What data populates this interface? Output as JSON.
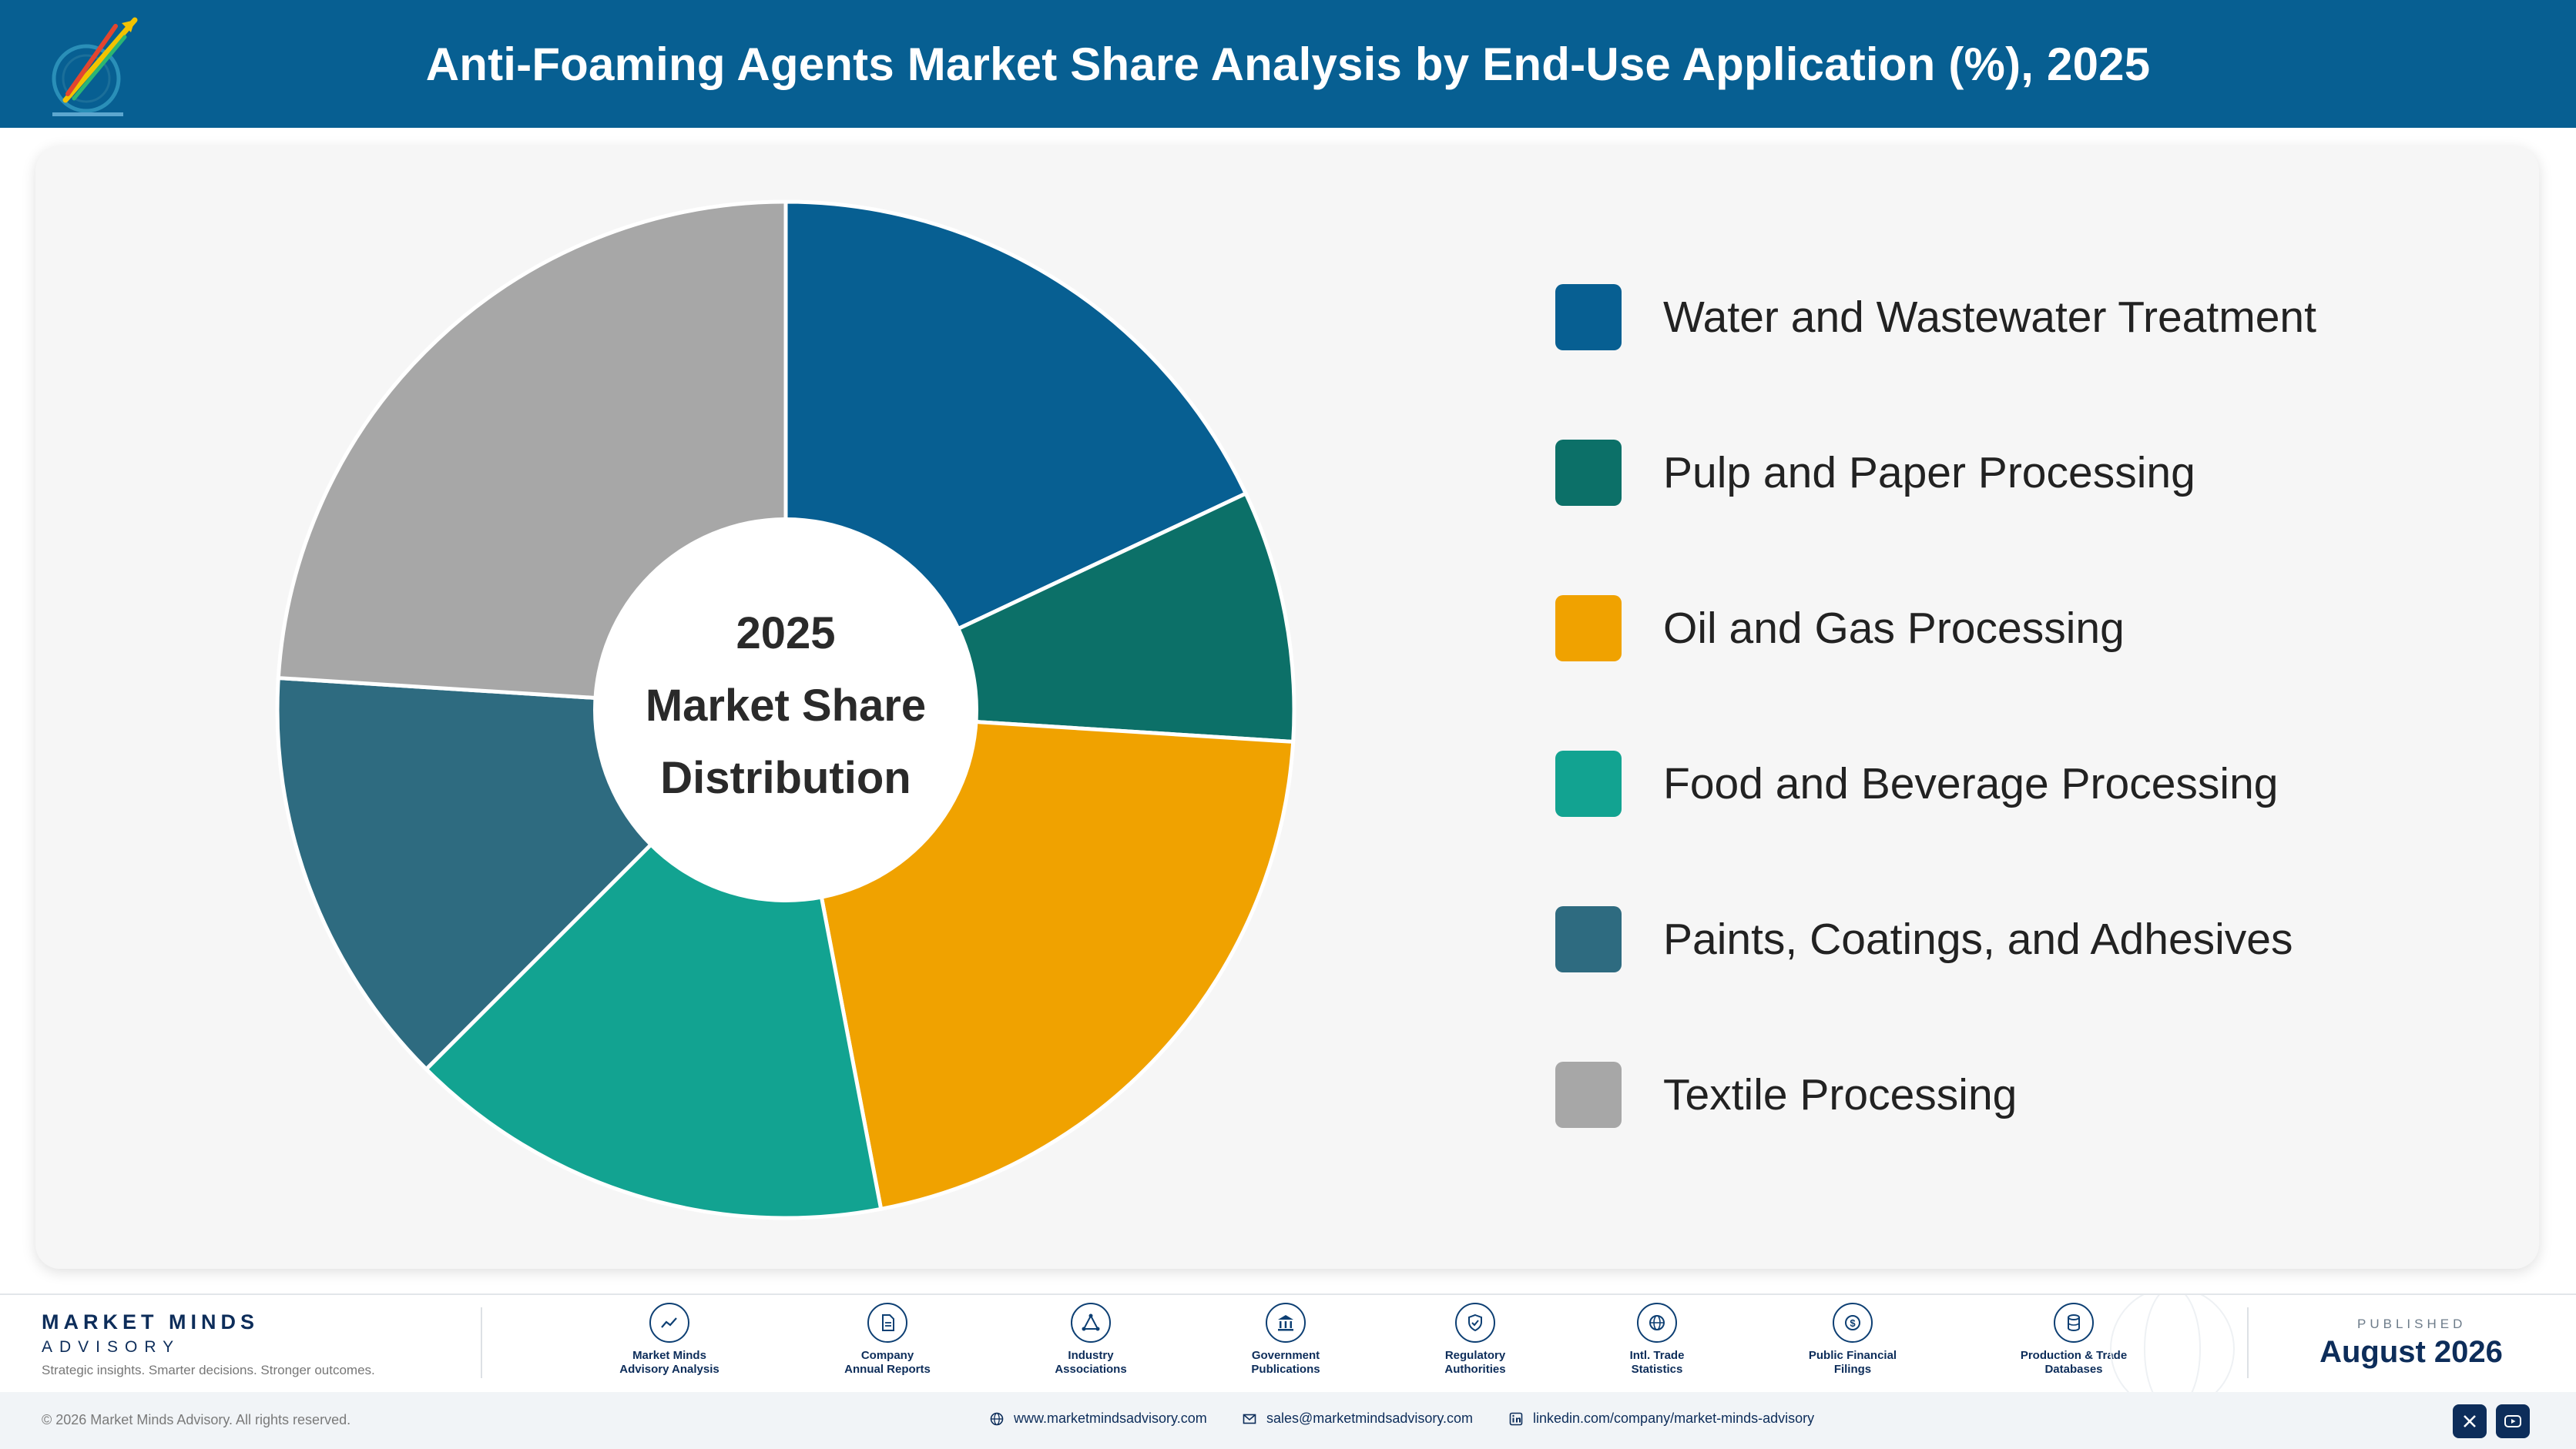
{
  "header": {
    "title": "Anti-Foaming Agents Market Share Analysis by End-Use Application (%), 2025"
  },
  "colors": {
    "header_bg": "#075f92",
    "panel_bg": "#f6f6f6",
    "brand_navy": "#0d2d5a"
  },
  "chart_data": {
    "type": "pie",
    "variant": "donut",
    "title": "",
    "center_label": [
      "2025",
      "Market Share",
      "Distribution"
    ],
    "categories": [
      "Water and Wastewater Treatment",
      "Pulp and Paper Processing",
      "Oil and Gas Processing",
      "Food and Beverage Processing",
      "Paints, Coatings, and Adhesives",
      "Textile Processing"
    ],
    "values": [
      18.0,
      8.0,
      21.0,
      15.5,
      13.5,
      24.0
    ],
    "colors": [
      "#075f92",
      "#0c7068",
      "#f0a200",
      "#12a391",
      "#2e6b80",
      "#a7a7a7"
    ],
    "legend_position": "right",
    "data_labels_shown": false
  },
  "footer": {
    "brand": {
      "name": "MARKET MINDS",
      "sub": "ADVISORY",
      "tagline": "Strategic insights. Smarter decisions. Stronger outcomes."
    },
    "sources": [
      {
        "label": "Market Minds\nAdvisory Analysis",
        "icon": "trend-chart-icon"
      },
      {
        "label": "Company\nAnnual Reports",
        "icon": "document-icon"
      },
      {
        "label": "Industry\nAssociations",
        "icon": "network-icon"
      },
      {
        "label": "Government\nPublications",
        "icon": "government-building-icon"
      },
      {
        "label": "Regulatory\nAuthorities",
        "icon": "shield-check-icon"
      },
      {
        "label": "Intl. Trade\nStatistics",
        "icon": "globe-icon"
      },
      {
        "label": "Public Financial\nFilings",
        "icon": "dollar-coin-icon"
      },
      {
        "label": "Production & Trade\nDatabases",
        "icon": "database-icon"
      }
    ],
    "published_label": "PUBLISHED",
    "published_date": "August 2026",
    "copyright": "© 2026 Market Minds Advisory. All rights reserved.",
    "website": "www.marketmindsadvisory.com",
    "email": "sales@marketmindsadvisory.com",
    "linkedin": "linkedin.com/company/market-minds-advisory",
    "social_icons": [
      "x-icon",
      "youtube-icon"
    ]
  }
}
